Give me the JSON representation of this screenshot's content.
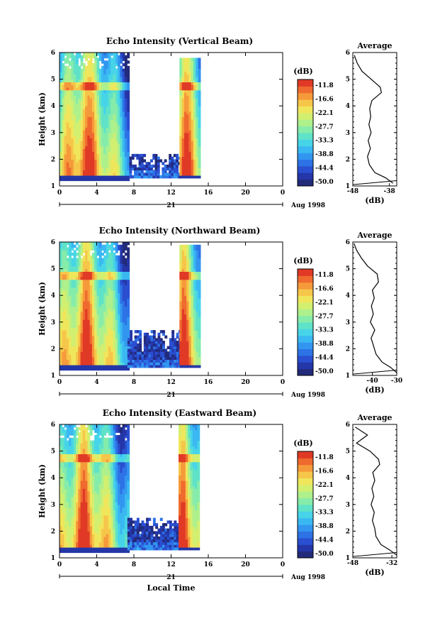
{
  "colors": {
    "scale": [
      "#222a7a",
      "#2436a8",
      "#2a4fd0",
      "#2d73e6",
      "#3296f0",
      "#3ab8f2",
      "#47d4e8",
      "#5fe2c8",
      "#86ecaa",
      "#aef08c",
      "#d2ef70",
      "#f0e65c",
      "#f6c64a",
      "#f59a3a",
      "#ef6a2e",
      "#e03a26"
    ],
    "background": "#ffffff"
  },
  "chart_data": [
    {
      "type": "heatmap",
      "title": "Echo Intensity (Vertical Beam)",
      "ylabel": "Height (km)",
      "xlabel": "",
      "x_ticks": [
        "0",
        "4",
        "8",
        "12",
        "16",
        "20",
        "0"
      ],
      "y_ticks": [
        "1",
        "2",
        "3",
        "4",
        "5",
        "6"
      ],
      "xlim": [
        0,
        24
      ],
      "ylim": [
        1,
        6
      ],
      "date_row": {
        "tick": "21",
        "date_label": "Aug 1998"
      },
      "colorbar": {
        "unit": "(dB)",
        "labels": [
          "-11.8",
          "-16.6",
          "-22.1",
          "-27.7",
          "-33.3",
          "-38.8",
          "-44.4",
          "-50.0"
        ]
      },
      "echo_blocks": [
        {
          "t_start": 0,
          "t_end": 7.5,
          "h_start": 1.2,
          "h_end": 6.0,
          "peak_time": 2.6,
          "peak_height": 1.4,
          "peak_db": -11.8
        },
        {
          "t_start": 7.5,
          "t_end": 13.0,
          "h_start": 1.3,
          "h_end": 2.2,
          "peak_db": -44.4
        },
        {
          "t_start": 12.9,
          "t_end": 15.0,
          "h_start": 1.3,
          "h_end": 5.8,
          "peak_time": 13.3,
          "peak_db": -11.8
        }
      ],
      "average_profile": {
        "title": "Average",
        "xlabel": "(dB)",
        "x_ticks": [
          "-48",
          "-38"
        ],
        "y_ticks": [
          "1",
          "2",
          "3",
          "4",
          "5",
          "6"
        ],
        "xlim": [
          -48,
          -36
        ],
        "heights": [
          1.1,
          1.3,
          1.5,
          1.8,
          2.1,
          2.4,
          2.7,
          3.0,
          3.3,
          3.6,
          3.9,
          4.2,
          4.5,
          4.7,
          5.0,
          5.3,
          5.6,
          5.9
        ],
        "values": [
          -37.0,
          -39.0,
          -42.0,
          -43.5,
          -44.0,
          -43.2,
          -43.8,
          -43.0,
          -43.6,
          -43.1,
          -43.4,
          -42.8,
          -40.2,
          -40.5,
          -43.0,
          -45.5,
          -46.8,
          -47.6
        ]
      }
    },
    {
      "type": "heatmap",
      "title": "Echo Intensity (Northward Beam)",
      "ylabel": "Height (km)",
      "xlabel": "",
      "x_ticks": [
        "0",
        "4",
        "8",
        "12",
        "16",
        "20",
        "0"
      ],
      "y_ticks": [
        "1",
        "2",
        "3",
        "4",
        "5",
        "6"
      ],
      "xlim": [
        0,
        24
      ],
      "ylim": [
        1,
        6
      ],
      "date_row": {
        "tick": "21",
        "date_label": "Aug 1998"
      },
      "colorbar": {
        "unit": "(dB)",
        "labels": [
          "-11.8",
          "-16.6",
          "-22.1",
          "-27.7",
          "-33.3",
          "-38.8",
          "-44.4",
          "-50.0"
        ]
      },
      "echo_blocks": [
        {
          "t_start": 0,
          "t_end": 7.3,
          "h_start": 1.2,
          "h_end": 6.0,
          "peak_time": 2.6,
          "peak_height": 1.4,
          "peak_db": -11.8
        },
        {
          "t_start": 7.3,
          "t_end": 13.0,
          "h_start": 1.3,
          "h_end": 2.7,
          "peak_db": -44.4
        },
        {
          "t_start": 12.9,
          "t_end": 15.0,
          "h_start": 1.3,
          "h_end": 5.9,
          "peak_time": 13.2,
          "peak_db": -11.8
        }
      ],
      "average_profile": {
        "title": "Average",
        "xlabel": "(dB)",
        "x_ticks": [
          "-40",
          "-30"
        ],
        "y_ticks": [
          "1",
          "2",
          "3",
          "4",
          "5",
          "6"
        ],
        "xlim": [
          -48,
          -30
        ],
        "heights": [
          1.1,
          1.3,
          1.5,
          1.8,
          2.1,
          2.4,
          2.7,
          3.0,
          3.3,
          3.6,
          3.9,
          4.2,
          4.5,
          4.8,
          5.1,
          5.4,
          5.7,
          5.95
        ],
        "values": [
          -30.0,
          -32.5,
          -36.0,
          -38.5,
          -39.5,
          -40.5,
          -39.0,
          -40.8,
          -39.6,
          -40.4,
          -39.2,
          -40.0,
          -37.5,
          -38.0,
          -42.0,
          -44.5,
          -46.5,
          -47.5
        ]
      }
    },
    {
      "type": "heatmap",
      "title": "Echo Intensity (Eastward Beam)",
      "ylabel": "Height (km)",
      "xlabel": "Local Time",
      "x_ticks": [
        "0",
        "4",
        "8",
        "12",
        "16",
        "20",
        "0"
      ],
      "y_ticks": [
        "1",
        "2",
        "3",
        "4",
        "5",
        "6"
      ],
      "xlim": [
        0,
        24
      ],
      "ylim": [
        1,
        6
      ],
      "date_row": {
        "tick": "21",
        "date_label": "Aug 1998"
      },
      "colorbar": {
        "unit": "(dB)",
        "labels": [
          "-11.8",
          "-16.6",
          "-22.1",
          "-27.7",
          "-33.3",
          "-38.8",
          "-44.4",
          "-50.0"
        ]
      },
      "echo_blocks": [
        {
          "t_start": 0,
          "t_end": 7.3,
          "h_start": 1.2,
          "h_end": 6.0,
          "peak_time": 2.6,
          "peak_height": 1.4,
          "peak_db": -11.8
        },
        {
          "t_start": 7.3,
          "t_end": 13.0,
          "h_start": 1.3,
          "h_end": 2.5,
          "peak_db": -44.4
        },
        {
          "t_start": 12.8,
          "t_end": 15.0,
          "h_start": 1.3,
          "h_end": 6.0,
          "peak_time": 13.3,
          "peak_db": -11.8
        }
      ],
      "average_profile": {
        "title": "Average",
        "xlabel": "(dB)",
        "x_ticks": [
          "-48",
          "-32"
        ],
        "y_ticks": [
          "1",
          "2",
          "3",
          "4",
          "5",
          "6"
        ],
        "xlim": [
          -48,
          -30
        ],
        "heights": [
          1.1,
          1.3,
          1.5,
          1.8,
          2.1,
          2.4,
          2.7,
          3.0,
          3.3,
          3.6,
          3.9,
          4.2,
          4.5,
          4.7,
          5.0,
          5.3,
          5.6,
          5.9
        ],
        "values": [
          -30.0,
          -33.0,
          -36.5,
          -38.5,
          -39.0,
          -40.0,
          -39.2,
          -40.5,
          -39.4,
          -40.2,
          -39.0,
          -39.8,
          -37.0,
          -37.5,
          -41.0,
          -46.5,
          -42.0,
          -47.0
        ]
      }
    }
  ]
}
